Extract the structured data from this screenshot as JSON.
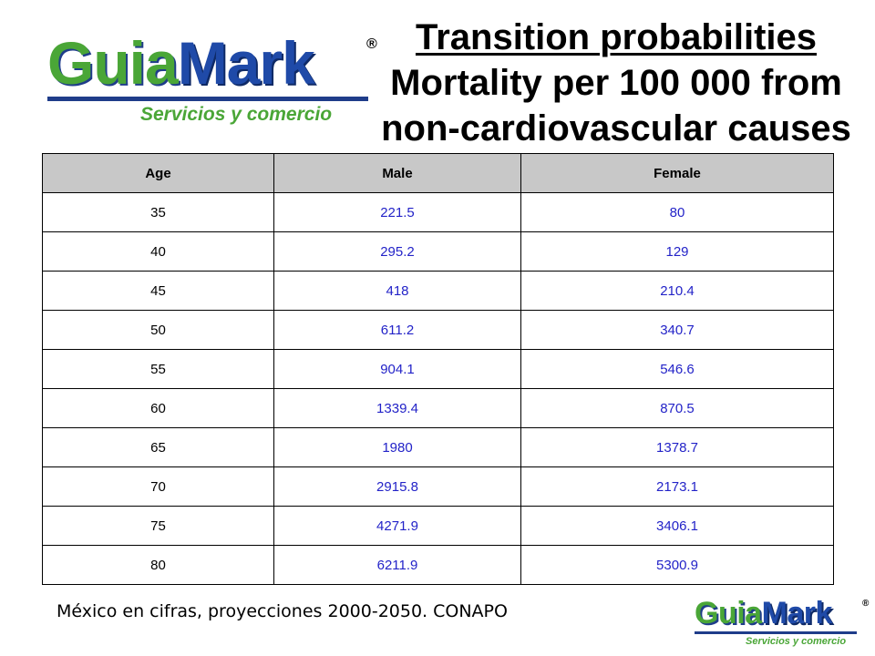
{
  "logo": {
    "word_part1": "Guia",
    "word_part2": "Mark",
    "registered": "®",
    "tagline": "Servicios y comercio",
    "colors": {
      "green": "#4aa637",
      "blue": "#1f4aa8"
    }
  },
  "title": {
    "line1": "Transition probabilities",
    "line2": "Mortality per 100 000 from",
    "line3": "non-cardiovascular causes"
  },
  "table": {
    "headers": [
      "Age",
      "Male",
      "Female"
    ],
    "rows": [
      [
        "35",
        "221.5",
        "80"
      ],
      [
        "40",
        "295.2",
        "129"
      ],
      [
        "45",
        "418",
        "210.4"
      ],
      [
        "50",
        "611.2",
        "340.7"
      ],
      [
        "55",
        "904.1",
        "546.6"
      ],
      [
        "60",
        "1339.4",
        "870.5"
      ],
      [
        "65",
        "1980",
        "1378.7"
      ],
      [
        "70",
        "2915.8",
        "2173.1"
      ],
      [
        "75",
        "4271.9",
        "3406.1"
      ],
      [
        "80",
        "6211.9",
        "5300.9"
      ]
    ],
    "colors": {
      "header_bg": "#c8c8c8",
      "value_text": "#2323c8"
    }
  },
  "source": "México en cifras, proyecciones 2000-2050. CONAPO"
}
